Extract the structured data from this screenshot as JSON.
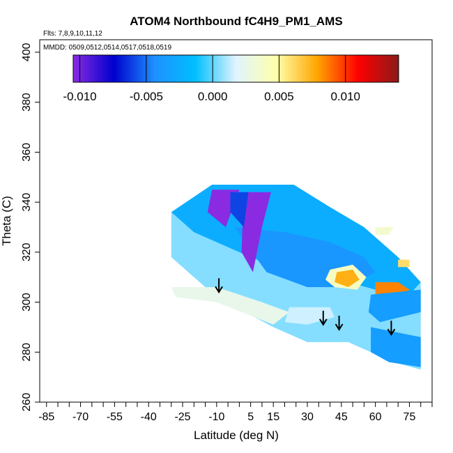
{
  "chart_data": {
    "type": "heatmap",
    "title": "ATOM4 Northbound fC4H9_PM1_AMS",
    "annotations": {
      "flights": "Flts: 7,8,9,10,11,12",
      "dates": "MMDD: 0509,0512,0514,0517,0518,0519"
    },
    "xlabel": "Latitude (deg N)",
    "ylabel": "Theta (C)",
    "xlim": [
      -88,
      85
    ],
    "ylim": [
      260,
      405
    ],
    "x_tick_labels": [
      "-85",
      "-70",
      "-55",
      "-40",
      "-25",
      "-10",
      "5",
      "15",
      "30",
      "45",
      "60",
      "75"
    ],
    "x_tick_values": [
      -85,
      -70,
      -55,
      -40,
      -25,
      -10,
      5,
      15,
      30,
      45,
      60,
      75
    ],
    "x_minor_step": 5,
    "y_tick_labels": [
      "260",
      "280",
      "300",
      "320",
      "340",
      "360",
      "380",
      "400"
    ],
    "y_tick_values": [
      260,
      280,
      300,
      320,
      340,
      360,
      380,
      400
    ],
    "grid": false,
    "colorbar": {
      "range": [
        -0.0105,
        0.014
      ],
      "tick_labels": [
        "-0.010",
        "-0.005",
        "0.000",
        "0.005",
        "0.010"
      ],
      "tick_values": [
        -0.01,
        -0.005,
        0.0,
        0.005,
        0.01
      ],
      "placement": "top",
      "colors": [
        "#8a2be2",
        "#0000cd",
        "#1e90ff",
        "#00bfff",
        "#e0f4ff",
        "#ffffaa",
        "#ffa500",
        "#ff0000",
        "#8b1a1a"
      ]
    },
    "tropopause_arrows": [
      {
        "x": -9,
        "y": 304
      },
      {
        "x": 37,
        "y": 291
      },
      {
        "x": 44,
        "y": 289
      },
      {
        "x": 67,
        "y": 287
      }
    ],
    "field_regions": [
      {
        "value": 0.0005,
        "poly": [
          [
            -30,
            336
          ],
          [
            -12,
            347
          ],
          [
            24,
            347
          ],
          [
            40,
            338
          ],
          [
            55,
            330
          ],
          [
            70,
            318
          ],
          [
            80,
            308
          ],
          [
            80,
            273
          ],
          [
            68,
            276
          ],
          [
            48,
            284
          ],
          [
            30,
            284
          ],
          [
            15,
            290
          ],
          [
            -10,
            302
          ],
          [
            -30,
            318
          ]
        ]
      },
      {
        "value": -0.0025,
        "poly": [
          [
            -30,
            336
          ],
          [
            -12,
            347
          ],
          [
            24,
            347
          ],
          [
            40,
            338
          ],
          [
            55,
            330
          ],
          [
            70,
            318
          ],
          [
            80,
            308
          ],
          [
            75,
            303
          ],
          [
            60,
            305
          ],
          [
            40,
            310
          ],
          [
            22,
            312
          ],
          [
            5,
            318
          ],
          [
            -20,
            328
          ]
        ]
      },
      {
        "value": -0.004,
        "poly": [
          [
            -2,
            330
          ],
          [
            20,
            328
          ],
          [
            40,
            324
          ],
          [
            55,
            318
          ],
          [
            60,
            312
          ],
          [
            48,
            306
          ],
          [
            30,
            306
          ],
          [
            12,
            312
          ]
        ]
      },
      {
        "value": -0.0125,
        "poly": [
          [
            -12,
            345
          ],
          [
            0,
            345
          ],
          [
            -6,
            330
          ],
          [
            -14,
            336
          ]
        ]
      },
      {
        "value": -0.011,
        "poly": [
          [
            2,
            344
          ],
          [
            14,
            344
          ],
          [
            10,
            330
          ],
          [
            6,
            312
          ],
          [
            1,
            320
          ]
        ]
      },
      {
        "value": -0.006,
        "poly": [
          [
            -4,
            344
          ],
          [
            4,
            344
          ],
          [
            2,
            330
          ],
          [
            -4,
            336
          ]
        ]
      },
      {
        "value": 0.004,
        "poly": [
          [
            40,
            313
          ],
          [
            50,
            315
          ],
          [
            56,
            310
          ],
          [
            52,
            305
          ],
          [
            42,
            306
          ],
          [
            38,
            309
          ]
        ]
      },
      {
        "value": 0.0075,
        "poly": [
          [
            43,
            312
          ],
          [
            50,
            313
          ],
          [
            53,
            309
          ],
          [
            48,
            306
          ],
          [
            42,
            308
          ]
        ]
      },
      {
        "value": 0.0085,
        "poly": [
          [
            60,
            308
          ],
          [
            70,
            308
          ],
          [
            75,
            305
          ],
          [
            68,
            301
          ],
          [
            60,
            303
          ]
        ]
      },
      {
        "value": 0.0025,
        "poly": [
          [
            -30,
            306
          ],
          [
            -10,
            306
          ],
          [
            10,
            300
          ],
          [
            22,
            296
          ],
          [
            15,
            291
          ],
          [
            -10,
            300
          ],
          [
            -28,
            302
          ]
        ]
      },
      {
        "value": 0.0015,
        "poly": [
          [
            22,
            298
          ],
          [
            40,
            298
          ],
          [
            42,
            294
          ],
          [
            30,
            291
          ],
          [
            20,
            292
          ]
        ]
      },
      {
        "value": -0.0035,
        "poly": [
          [
            58,
            303
          ],
          [
            80,
            305
          ],
          [
            80,
            296
          ],
          [
            62,
            292
          ],
          [
            57,
            296
          ]
        ]
      },
      {
        "value": -0.0035,
        "poly": [
          [
            58,
            290
          ],
          [
            80,
            286
          ],
          [
            80,
            274
          ],
          [
            66,
            276
          ],
          [
            58,
            280
          ]
        ]
      },
      {
        "value": 0.0035,
        "poly": [
          [
            60,
            330
          ],
          [
            68,
            330
          ],
          [
            66,
            327
          ],
          [
            60,
            327
          ]
        ]
      },
      {
        "value": 0.006,
        "poly": [
          [
            70,
            317
          ],
          [
            75,
            317
          ],
          [
            75,
            314
          ],
          [
            70,
            314
          ]
        ]
      }
    ]
  }
}
